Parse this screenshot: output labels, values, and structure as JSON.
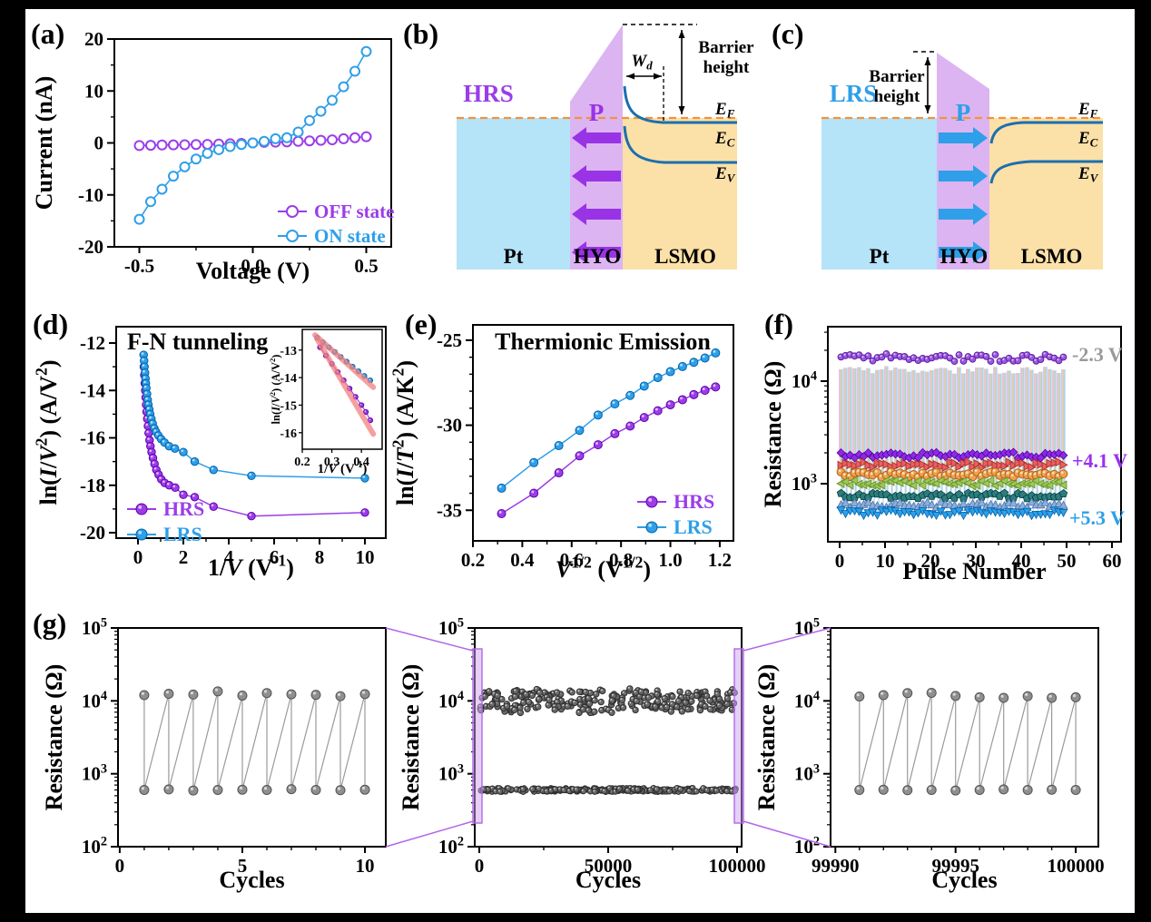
{
  "figure": {
    "background": "#000000",
    "canvas_color": "#ffffff",
    "panel_letters": [
      "(a)",
      "(b)",
      "(c)",
      "(d)",
      "(e)",
      "(f)",
      "(g)"
    ]
  },
  "colors": {
    "purple": "#9b3de8",
    "blue": "#2e9fe8",
    "axis": "#000000",
    "gray_data": "#8f8f8f",
    "gray_data_dark": "#5f5f5f",
    "fit_line": "#f28080",
    "pt_fill": "#b5e3f7",
    "hyo_fill": "#dcb4f2",
    "lsmo_fill": "#fbe0a8",
    "ef_dash": "#f4923c",
    "band_curve": "#1b6fae",
    "connector_purple": "#b266e8",
    "highlight_fill": "rgba(205,160,242,0.5)"
  },
  "chart_data": [
    {
      "id": "a",
      "type": "line",
      "xlabel": "Voltage (V)",
      "ylabel": "Current (nA)",
      "xlim": [
        -0.61,
        0.61
      ],
      "ylim": [
        -20,
        20
      ],
      "xticks": [
        -0.5,
        0.0,
        0.5
      ],
      "xtick_labels": [
        "-0.5",
        "0.0",
        "0.5"
      ],
      "xminor": [
        -0.25,
        0.25
      ],
      "yticks": [
        -20,
        -10,
        0,
        10,
        20
      ],
      "ytick_labels": [
        "-20",
        "-10",
        "0",
        "10",
        "20"
      ],
      "yminor": [
        -15,
        -5,
        5,
        15
      ],
      "legend_position": "bottom-right",
      "series": [
        {
          "name": "OFF state",
          "color": "#9b3de8",
          "marker": "open-circle",
          "x": [
            -0.5,
            -0.45,
            -0.4,
            -0.35,
            -0.3,
            -0.25,
            -0.2,
            -0.15,
            -0.1,
            -0.05,
            0,
            0.05,
            0.1,
            0.15,
            0.2,
            0.25,
            0.3,
            0.35,
            0.4,
            0.45,
            0.5
          ],
          "y": [
            -0.5,
            -0.45,
            -0.4,
            -0.38,
            -0.35,
            -0.3,
            -0.28,
            -0.22,
            -0.15,
            -0.08,
            0,
            0.1,
            0.15,
            0.2,
            0.3,
            0.4,
            0.5,
            0.6,
            0.8,
            1.0,
            1.2
          ]
        },
        {
          "name": "ON state",
          "color": "#2e9fe8",
          "marker": "open-circle",
          "x": [
            -0.5,
            -0.45,
            -0.4,
            -0.35,
            -0.3,
            -0.25,
            -0.2,
            -0.15,
            -0.1,
            -0.05,
            0,
            0.05,
            0.1,
            0.15,
            0.2,
            0.25,
            0.3,
            0.35,
            0.4,
            0.45,
            0.5
          ],
          "y": [
            -14.7,
            -11.3,
            -8.9,
            -6.4,
            -4.6,
            -3.1,
            -2.0,
            -1.3,
            -0.7,
            -0.3,
            0,
            0.3,
            0.8,
            1.0,
            2.1,
            4.3,
            6.1,
            8.2,
            10.8,
            13.8,
            17.6
          ]
        }
      ]
    },
    {
      "id": "d",
      "type": "line",
      "title": "F-N tunneling",
      "xlabel": "1/*V* (V^{-1})",
      "ylabel": "ln(*I*/*V*^{2}) (A/V^{2})",
      "xlim": [
        -0.96,
        10.92
      ],
      "ylim": [
        -20.23,
        -11.31
      ],
      "xticks": [
        0,
        2,
        4,
        6,
        8,
        10
      ],
      "xtick_labels": [
        "0",
        "2",
        "4",
        "6",
        "8",
        "10"
      ],
      "xminor": [
        1,
        3,
        5,
        7,
        9
      ],
      "yticks": [
        -20,
        -18,
        -16,
        -14,
        -12
      ],
      "ytick_labels": [
        "-20",
        "-18",
        "-16",
        "-14",
        "-12"
      ],
      "yminor": [
        -19,
        -17,
        -15,
        -13
      ],
      "legend_position": "bottom-left",
      "series": [
        {
          "name": "HRS",
          "color": "#9b3de8",
          "marker": "sphere",
          "x": [
            0.26,
            0.28,
            0.3,
            0.32,
            0.34,
            0.36,
            0.38,
            0.41,
            0.44,
            0.47,
            0.51,
            0.55,
            0.6,
            0.66,
            0.73,
            0.81,
            0.91,
            1.03,
            1.18,
            1.38,
            1.64,
            2.0,
            2.5,
            3.33,
            5.0,
            10.0
          ],
          "y": [
            -13.0,
            -13.35,
            -13.7,
            -14.0,
            -14.3,
            -14.6,
            -14.9,
            -15.2,
            -15.5,
            -15.8,
            -16.1,
            -16.35,
            -16.6,
            -16.85,
            -17.1,
            -17.35,
            -17.55,
            -17.75,
            -17.9,
            -18.0,
            -18.1,
            -18.4,
            -18.5,
            -18.9,
            -19.3,
            -19.15
          ]
        },
        {
          "name": "LRS",
          "color": "#2e9fe8",
          "marker": "sphere",
          "x": [
            0.25,
            0.27,
            0.29,
            0.31,
            0.33,
            0.35,
            0.37,
            0.4,
            0.43,
            0.46,
            0.5,
            0.54,
            0.59,
            0.65,
            0.72,
            0.8,
            0.9,
            1.02,
            1.17,
            1.37,
            1.63,
            2.0,
            2.5,
            3.33,
            5.0,
            10.0
          ],
          "y": [
            -12.5,
            -12.75,
            -13.0,
            -13.25,
            -13.5,
            -13.7,
            -13.9,
            -14.15,
            -14.4,
            -14.6,
            -14.8,
            -15.0,
            -15.2,
            -15.4,
            -15.6,
            -15.75,
            -15.9,
            -16.05,
            -16.2,
            -16.35,
            -16.45,
            -16.6,
            -17.0,
            -17.35,
            -17.6,
            -17.7
          ]
        }
      ]
    },
    {
      "id": "d_inset",
      "type": "line",
      "xlabel": "1/*V* (V^{-1})",
      "ylabel": "ln(*I*/*V*^{2}) (A/V^{2})",
      "xlim": [
        0.2,
        0.47
      ],
      "ylim": [
        -16.6,
        -12.25
      ],
      "xticks": [
        0.2,
        0.3,
        0.4
      ],
      "xtick_labels": [
        "0.2",
        "0.3",
        "0.4"
      ],
      "yticks": [
        -16,
        -15,
        -14,
        -13
      ],
      "ytick_labels": [
        "-16",
        "-15",
        "-14",
        "-13"
      ],
      "fit_color": "#f28080",
      "series": [
        {
          "name": "LRS",
          "color": "#2e9fe8",
          "marker": "sphere",
          "x": [
            0.25,
            0.27,
            0.29,
            0.31,
            0.33,
            0.35,
            0.37,
            0.39,
            0.41,
            0.43
          ],
          "y": [
            -12.55,
            -12.72,
            -12.9,
            -13.07,
            -13.25,
            -13.42,
            -13.6,
            -13.77,
            -13.94,
            -14.1
          ],
          "fit": {
            "x": [
              0.243,
              0.44
            ],
            "y": [
              -12.45,
              -14.35
            ]
          }
        },
        {
          "name": "HRS",
          "color": "#9b3de8",
          "marker": "sphere",
          "x": [
            0.26,
            0.28,
            0.3,
            0.32,
            0.34,
            0.36,
            0.38,
            0.4,
            0.415,
            0.43
          ],
          "y": [
            -12.9,
            -13.2,
            -13.5,
            -13.8,
            -14.1,
            -14.4,
            -14.7,
            -15.0,
            -15.25,
            -15.55
          ],
          "fit": {
            "x": [
              0.25,
              0.44
            ],
            "y": [
              -12.6,
              -16.05
            ]
          }
        }
      ]
    },
    {
      "id": "e",
      "type": "line",
      "title": "Thermionic Emission",
      "xlabel": "*V*^{1/2} (V^{1/2})",
      "ylabel": "ln(*I*/*T*^{2}) (A/K^{2})",
      "xlim": [
        0.2,
        1.2554
      ],
      "ylim": [
        -36.8,
        -24.1
      ],
      "xticks": [
        0.2,
        0.4,
        0.6,
        0.8,
        1.0,
        1.2
      ],
      "xtick_labels": [
        "0.2",
        "0.4",
        "0.6",
        "0.8",
        "1.0",
        "1.2"
      ],
      "xminor": [
        0.3,
        0.5,
        0.7,
        0.9,
        1.1
      ],
      "yticks": [
        -35,
        -30,
        -25
      ],
      "ytick_labels": [
        "-35",
        "-30",
        "-25"
      ],
      "yminor": [
        -34,
        -33,
        -32,
        -31,
        -29,
        -28,
        -27,
        -26
      ],
      "legend_position": "bottom-right",
      "series": [
        {
          "name": "HRS",
          "color": "#9b3de8",
          "marker": "sphere",
          "x": [
            0.316,
            0.447,
            0.548,
            0.632,
            0.707,
            0.775,
            0.837,
            0.894,
            0.949,
            1.0,
            1.049,
            1.095,
            1.14,
            1.183
          ],
          "y": [
            -35.2,
            -34.0,
            -32.8,
            -31.8,
            -31.15,
            -30.5,
            -30.05,
            -29.55,
            -29.15,
            -28.8,
            -28.5,
            -28.2,
            -27.95,
            -27.75
          ]
        },
        {
          "name": "LRS",
          "color": "#2e9fe8",
          "marker": "sphere",
          "x": [
            0.316,
            0.447,
            0.548,
            0.632,
            0.707,
            0.775,
            0.837,
            0.894,
            0.949,
            1.0,
            1.049,
            1.095,
            1.14,
            1.183
          ],
          "y": [
            -33.7,
            -32.2,
            -31.2,
            -30.3,
            -29.4,
            -28.75,
            -28.25,
            -27.7,
            -27.2,
            -26.85,
            -26.55,
            -26.3,
            -26.05,
            -25.75
          ]
        }
      ]
    },
    {
      "id": "f",
      "type": "scatter",
      "xlabel": "Pulse Number",
      "ylabel": "Resistance (Ω)",
      "xlim": [
        -2.6,
        62
      ],
      "ylog": [
        2.434,
        4.531
      ],
      "xticks": [
        0,
        10,
        20,
        30,
        40,
        50,
        60
      ],
      "xtick_labels": [
        "0",
        "10",
        "20",
        "30",
        "40",
        "50",
        "60"
      ],
      "xminor": [
        5,
        15,
        25,
        35,
        45,
        55
      ],
      "ytick_decades": [
        3,
        4
      ],
      "ytick_labels": [
        "10^{3}",
        "10^{4}"
      ],
      "pulses": 50,
      "reset_series": {
        "annotation": "-2.3 V",
        "annotation_color": "#9a9a9a",
        "level": 17000,
        "color": "#9b59e0",
        "marker": "sphere"
      },
      "set_series": [
        {
          "annotation": "+4.1 V",
          "annotation_color": "#9b30f0",
          "level": 1900,
          "color": "#8e2be2",
          "marker": "diamond"
        },
        {
          "level": 1530,
          "color": "#e86060",
          "marker": "tri-right"
        },
        {
          "level": 1230,
          "color": "#f0a050",
          "marker": "circle"
        },
        {
          "level": 1010,
          "color": "#9dc85a",
          "marker": "tri-left"
        },
        {
          "level": 760,
          "color": "#2e7d7d",
          "marker": "pentagon"
        },
        {
          "level": 625,
          "color": "#8aaede",
          "marker": "tri-up"
        },
        {
          "annotation": "+5.3 V",
          "annotation_color": "#2e9fe8",
          "level": 520,
          "color": "#2e9fe8",
          "marker": "tri-down"
        }
      ]
    },
    {
      "id": "g1",
      "type": "line",
      "xlabel": "Cycles",
      "ylabel": "Resistance (Ω)",
      "xlim": [
        -0.07,
        10.85
      ],
      "ylog": [
        2,
        5
      ],
      "xticks": [
        0,
        5,
        10
      ],
      "xtick_labels": [
        "0",
        "5",
        "10"
      ],
      "xminor": [
        1,
        2,
        3,
        4,
        6,
        7,
        8,
        9
      ],
      "ytick_decades": [
        2,
        3,
        4,
        5
      ],
      "ytick_labels": [
        "10^{2}",
        "10^{3}",
        "10^{4}",
        "10^{5}"
      ],
      "cycles": [
        1,
        2,
        3,
        4,
        5,
        6,
        7,
        8,
        9,
        10
      ],
      "hrs": [
        12000,
        12500,
        12200,
        13500,
        11800,
        12800,
        12300,
        12100,
        11600,
        12400
      ],
      "lrs": [
        600,
        610,
        590,
        600,
        605,
        600,
        615,
        600,
        595,
        605
      ],
      "color": "#8f8f8f"
    },
    {
      "id": "g2",
      "type": "scatter",
      "xlabel": "Cycles",
      "ylabel": "Resistance (Ω)",
      "xlim": [
        -1760,
        101760
      ],
      "ylog": [
        2,
        5
      ],
      "xticks": [
        0,
        50000,
        100000
      ],
      "xtick_labels": [
        "0",
        "50000",
        "100000"
      ],
      "xminor": [
        25000,
        75000
      ],
      "ytick_decades": [
        2,
        3,
        4,
        5
      ],
      "ytick_labels": [
        "10^{2}",
        "10^{3}",
        "10^{4}",
        "10^{5}"
      ],
      "hrs_level": 10000,
      "hrs_spread": 0.3,
      "lrs_level": 600,
      "lrs_spread": 0.05,
      "points_per_band": 260,
      "color": "#6a6a6a"
    },
    {
      "id": "g3",
      "type": "line",
      "xlabel": "Cycles",
      "ylabel": "Resistance (Ω)",
      "xlim": [
        99989.8,
        100000.94
      ],
      "ylog": [
        2,
        5
      ],
      "xticks": [
        99990,
        99995,
        100000
      ],
      "xtick_labels": [
        "99990",
        "99995",
        "100000"
      ],
      "xminor": [
        99991,
        99992,
        99993,
        99994,
        99996,
        99997,
        99998,
        99999
      ],
      "ytick_decades": [
        2,
        3,
        4,
        5
      ],
      "ytick_labels": [
        "10^{2}",
        "10^{3}",
        "10^{4}",
        "10^{5}"
      ],
      "cycles": [
        99991,
        99992,
        99993,
        99994,
        99995,
        99996,
        99997,
        99998,
        99999,
        100000
      ],
      "hrs": [
        11500,
        12000,
        12800,
        12900,
        11700,
        11200,
        11000,
        11600,
        11000,
        11200
      ],
      "lrs": [
        600,
        605,
        595,
        600,
        590,
        600,
        610,
        600,
        605,
        600
      ],
      "color": "#8f8f8f"
    }
  ],
  "diagrams": [
    {
      "id": "b",
      "state_label": "HRS",
      "state_color": "#9b3de8",
      "polarization_label": "P",
      "polarization_dir": "left",
      "arrow_color": "#9933e6",
      "layers": [
        "Pt",
        "HYO",
        "LSMO"
      ],
      "annotations": {
        "barrier": "Barrier height",
        "depletion": "*W_{d}*",
        "ef": "*E_{F}*",
        "ec": "*E_{C}*",
        "ev": "*E_{V}*"
      }
    },
    {
      "id": "c",
      "state_label": "LRS",
      "state_color": "#2e9fe8",
      "polarization_label": "P",
      "polarization_dir": "right",
      "arrow_color": "#2e9fe8",
      "layers": [
        "Pt",
        "HYO",
        "LSMO"
      ],
      "annotations": {
        "barrier": "Barrier height",
        "ef": "*E_{F}*",
        "ec": "*E_{C}*",
        "ev": "*E_{V}*"
      }
    }
  ]
}
